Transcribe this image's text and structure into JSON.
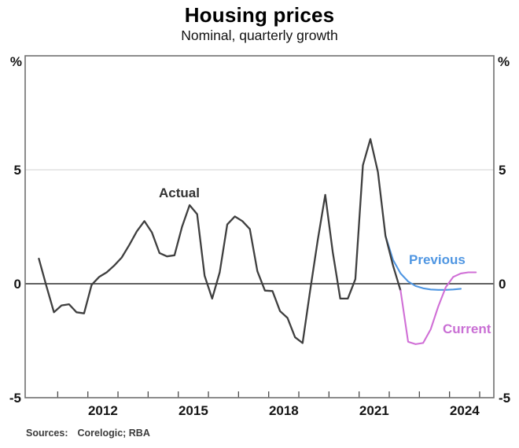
{
  "chart_data": {
    "type": "line",
    "title": "Housing prices",
    "subtitle": "Nominal, quarterly growth",
    "unit_left": "%",
    "unit_right": "%",
    "ylim": [
      -5,
      10
    ],
    "xlim": [
      2009.92,
      2025.47
    ],
    "yticks": [
      {
        "value": 5,
        "label": "5"
      },
      {
        "value": 0,
        "label": "0"
      },
      {
        "value": -5,
        "label": "-5"
      }
    ],
    "gridlines": [
      5
    ],
    "zero_line": 0,
    "xticks_years": [
      2011,
      2012,
      2013,
      2014,
      2015,
      2016,
      2017,
      2018,
      2019,
      2020,
      2021,
      2022,
      2023,
      2024,
      2025
    ],
    "xtick_labels": [
      {
        "label": "2012",
        "x_year": 2012.5
      },
      {
        "label": "2015",
        "x_year": 2015.5
      },
      {
        "label": "2018",
        "x_year": 2018.5
      },
      {
        "label": "2021",
        "x_year": 2021.5
      },
      {
        "label": "2024",
        "x_year": 2024.5
      }
    ],
    "legend_position": "inline-labels",
    "grid": "horizontal-only",
    "series": [
      {
        "name": "Previous",
        "color": "#4f96e2",
        "width": 2.1,
        "x": [
          2021.875,
          2022.125,
          2022.375,
          2022.625,
          2022.875,
          2023.125,
          2023.375,
          2023.625,
          2023.875,
          2024.125,
          2024.375
        ],
        "values": [
          2.1,
          1.05,
          0.45,
          0.1,
          -0.1,
          -0.2,
          -0.25,
          -0.27,
          -0.27,
          -0.25,
          -0.22
        ]
      },
      {
        "name": "Actual",
        "color": "#3f3f3f",
        "width": 2.3,
        "x": [
          2010.375,
          2010.625,
          2010.875,
          2011.125,
          2011.375,
          2011.625,
          2011.875,
          2012.125,
          2012.375,
          2012.625,
          2012.875,
          2013.125,
          2013.375,
          2013.625,
          2013.875,
          2014.125,
          2014.375,
          2014.625,
          2014.875,
          2015.125,
          2015.375,
          2015.625,
          2015.875,
          2016.125,
          2016.375,
          2016.625,
          2016.875,
          2017.125,
          2017.375,
          2017.625,
          2017.875,
          2018.125,
          2018.375,
          2018.625,
          2018.875,
          2019.125,
          2019.375,
          2019.625,
          2019.875,
          2020.125,
          2020.375,
          2020.625,
          2020.875,
          2021.125,
          2021.375,
          2021.625,
          2021.875,
          2022.125,
          2022.375
        ],
        "values": [
          1.1,
          -0.1,
          -1.25,
          -0.95,
          -0.9,
          -1.25,
          -1.3,
          -0.05,
          0.3,
          0.5,
          0.8,
          1.15,
          1.7,
          2.3,
          2.75,
          2.25,
          1.35,
          1.2,
          1.25,
          2.5,
          3.45,
          3.05,
          0.35,
          -0.65,
          0.5,
          2.6,
          2.95,
          2.75,
          2.4,
          0.55,
          -0.3,
          -0.32,
          -1.2,
          -1.5,
          -2.35,
          -2.6,
          -0.3,
          1.9,
          3.9,
          1.4,
          -0.65,
          -0.65,
          0.2,
          5.2,
          6.35,
          4.9,
          2.1,
          0.8,
          -0.3
        ]
      },
      {
        "name": "Current",
        "color": "#d06fd6",
        "width": 2.1,
        "x": [
          2022.375,
          2022.625,
          2022.875,
          2023.125,
          2023.375,
          2023.625,
          2023.875,
          2024.125,
          2024.375,
          2024.625,
          2024.875
        ],
        "values": [
          -0.3,
          -2.55,
          -2.65,
          -2.6,
          -2.0,
          -1.0,
          -0.15,
          0.3,
          0.45,
          0.5,
          0.5
        ]
      }
    ],
    "annotations": [
      {
        "text": "Actual",
        "color": "#333333"
      },
      {
        "text": "Previous",
        "color": "#4f96e2"
      },
      {
        "text": "Current",
        "color": "#c96fd4"
      }
    ]
  },
  "labels": {
    "actual": "Actual",
    "previous": "Previous",
    "current": "Current"
  },
  "source": {
    "prefix": "Sources:",
    "text": "Corelogic; RBA"
  }
}
